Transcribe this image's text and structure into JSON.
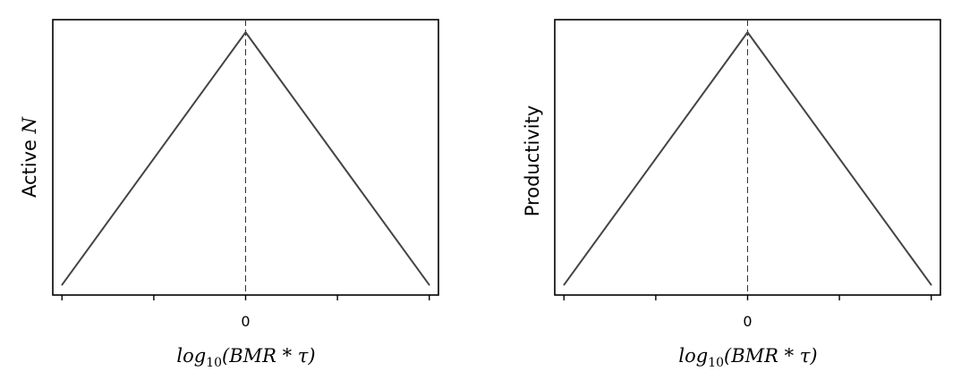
{
  "chart_data": [
    {
      "type": "line",
      "ylabel_text": "Active",
      "ylabel_var": "N",
      "xlabel": {
        "pre": "log",
        "sub": "10",
        "post": "(BMR * τ)"
      },
      "xlim": [
        -2.1,
        2.1
      ],
      "ylim": [
        -0.04,
        1.05
      ],
      "x_ticks": [
        -2,
        -1,
        0,
        1,
        2
      ],
      "x_tick_labels": [
        "",
        "",
        "0",
        "",
        ""
      ],
      "y_ticks_visible": false,
      "x": [
        -2,
        0,
        2
      ],
      "y": [
        0,
        1,
        0
      ],
      "line_color": "#444444",
      "vline": {
        "x": 0,
        "style": "dashed",
        "color": "#333333"
      }
    },
    {
      "type": "line",
      "ylabel_text": "Productivity",
      "ylabel_var": "",
      "xlabel": {
        "pre": "log",
        "sub": "10",
        "post": "(BMR * τ)"
      },
      "xlim": [
        -2.1,
        2.1
      ],
      "ylim": [
        -0.04,
        1.05
      ],
      "x_ticks": [
        -2,
        -1,
        0,
        1,
        2
      ],
      "x_tick_labels": [
        "",
        "",
        "0",
        "",
        ""
      ],
      "y_ticks_visible": false,
      "x": [
        -2,
        0,
        2
      ],
      "y": [
        0,
        1,
        0
      ],
      "line_color": "#444444",
      "vline": {
        "x": 0,
        "style": "dashed",
        "color": "#333333"
      }
    }
  ]
}
